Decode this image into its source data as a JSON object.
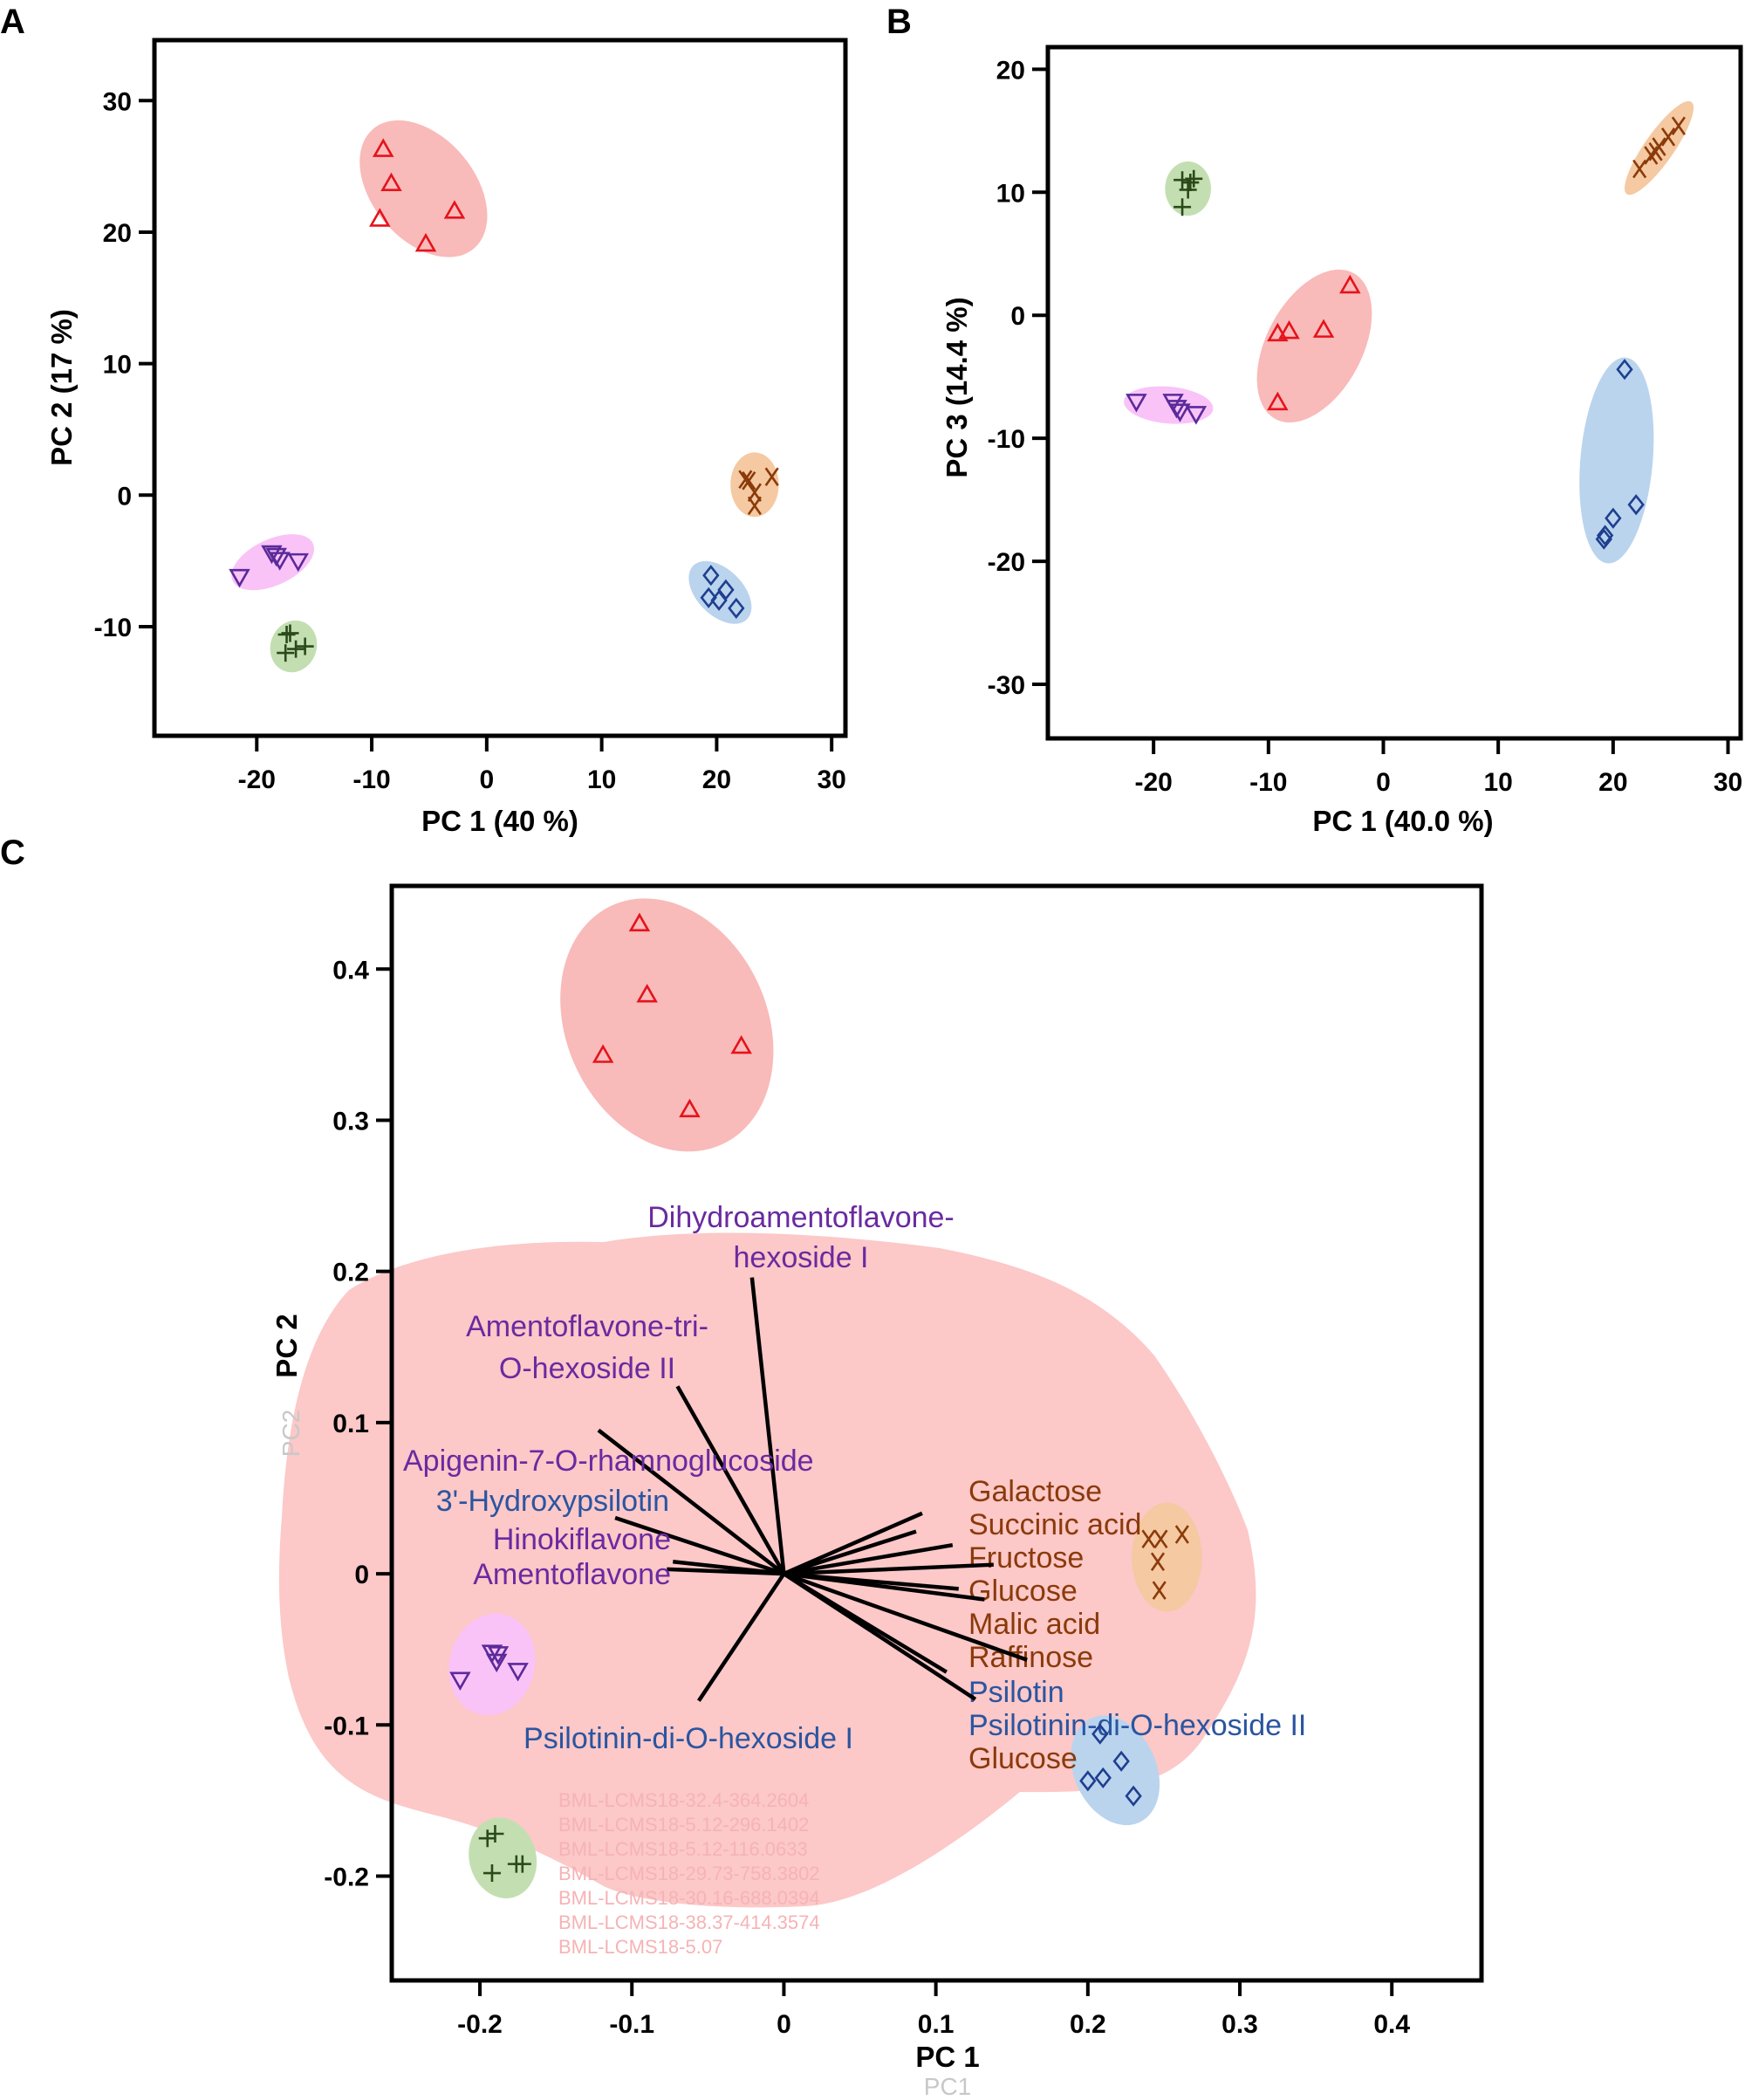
{
  "colors": {
    "red": {
      "fill": "#f9baba",
      "mark": "#e5131b"
    },
    "orange": {
      "fill": "#f5c9a1",
      "mark": "#8b3a0a"
    },
    "blue": {
      "fill": "#bad4ee",
      "mark": "#1f3f8f"
    },
    "magenta": {
      "fill": "#f9c3f8",
      "mark": "#5b2a9a"
    },
    "green": {
      "fill": "#c3dfb1",
      "mark": "#2a4a1a"
    },
    "label_purple": "#6a2aa0",
    "label_blue": "#2a55a0",
    "label_brown": "#8a3a0a",
    "loading_cloud": "#fcc8c8"
  },
  "chart_data": [
    {
      "panel": "A",
      "type": "scatter",
      "xlabel": "PC 1 (40 %)",
      "ylabel": "PC 2 (17 %)",
      "xlim": [
        -28.9,
        31.2
      ],
      "ylim": [
        -18.3,
        34.6
      ],
      "xticks": [
        -20,
        -10,
        0,
        10,
        20,
        30
      ],
      "yticks": [
        -10,
        0,
        10,
        20,
        30
      ],
      "groups": [
        {
          "color": "red",
          "marker": "triangle-up",
          "points": [
            [
              -9,
              26.3
            ],
            [
              -8.3,
              23.7
            ],
            [
              -9.3,
              21
            ],
            [
              -2.8,
              21.6
            ],
            [
              -5.3,
              19.1
            ]
          ],
          "ellipse": {
            "center": [
              -5.5,
              23.3
            ],
            "a": 6.8,
            "b": 3.9,
            "angle": 50
          }
        },
        {
          "color": "orange",
          "marker": "x",
          "points": [
            [
              22.5,
              1.2
            ],
            [
              22.8,
              1.1
            ],
            [
              24.8,
              1.4
            ],
            [
              23.3,
              0.2
            ],
            [
              23.3,
              -0.8
            ]
          ],
          "ellipse": {
            "center": [
              23.3,
              0.8
            ],
            "a": 2.1,
            "b": 2.45,
            "angle": 0
          }
        },
        {
          "color": "blue",
          "marker": "diamond",
          "points": [
            [
              19.5,
              -6.1
            ],
            [
              20.8,
              -7.2
            ],
            [
              19.3,
              -7.8
            ],
            [
              20.2,
              -8
            ],
            [
              21.7,
              -8.6
            ]
          ],
          "ellipse": {
            "center": [
              20.3,
              -7.4
            ],
            "a": 3.3,
            "b": 1.75,
            "angle": 45
          }
        },
        {
          "color": "magenta",
          "marker": "triangle-down",
          "points": [
            [
              -21.5,
              -6.2
            ],
            [
              -18.7,
              -4.4
            ],
            [
              -18.3,
              -4.6
            ],
            [
              -18,
              -4.9
            ],
            [
              -16.4,
              -5
            ]
          ],
          "ellipse": {
            "center": [
              -18.6,
              -5.1
            ],
            "a": 3.85,
            "b": 1.75,
            "angle": -25
          }
        },
        {
          "color": "green",
          "marker": "plus",
          "points": [
            [
              -17.4,
              -10.6
            ],
            [
              -17.1,
              -10.5
            ],
            [
              -17.5,
              -12
            ],
            [
              -16.6,
              -11.7
            ],
            [
              -15.8,
              -11.5
            ]
          ],
          "ellipse": {
            "center": [
              -16.8,
              -11.5
            ],
            "a": 2.0,
            "b": 2.0,
            "angle": 20
          }
        }
      ]
    },
    {
      "panel": "B",
      "type": "scatter",
      "xlabel": "PC 1 (40.0 %)",
      "ylabel": "PC 3 (14.4 %)",
      "xlim": [
        -29.2,
        31.1
      ],
      "ylim": [
        -34.4,
        21.8
      ],
      "xticks": [
        -20,
        -10,
        0,
        10,
        20,
        30
      ],
      "yticks": [
        -30,
        -20,
        -10,
        0,
        10,
        20
      ],
      "groups": [
        {
          "color": "red",
          "marker": "triangle-up",
          "points": [
            [
              -9.2,
              -1.5
            ],
            [
              -8.2,
              -1.3
            ],
            [
              -5.2,
              -1.2
            ],
            [
              -2.9,
              2.4
            ],
            [
              -9.2,
              -7.1
            ]
          ],
          "ellipse": {
            "center": [
              -6,
              -2.5
            ],
            "a": 7.2,
            "b": 3.9,
            "angle": -62
          }
        },
        {
          "color": "orange",
          "marker": "x",
          "points": [
            [
              22.3,
              11.9
            ],
            [
              23.3,
              13
            ],
            [
              24,
              13.7
            ],
            [
              24.8,
              14.5
            ],
            [
              25.7,
              15.4
            ],
            [
              23.7,
              13.3
            ]
          ],
          "ellipse": {
            "center": [
              24,
              13.6
            ],
            "a": 4.9,
            "b": 1.2,
            "angle": -55
          }
        },
        {
          "color": "blue",
          "marker": "diamond",
          "points": [
            [
              21,
              -4.4
            ],
            [
              22,
              -15.4
            ],
            [
              20,
              -16.5
            ],
            [
              19.3,
              -17.9
            ],
            [
              19.2,
              -18.2
            ]
          ],
          "ellipse": {
            "center": [
              20.3,
              -11.8
            ],
            "a": 3.15,
            "b": 8.4,
            "angle": 5
          }
        },
        {
          "color": "magenta",
          "marker": "triangle-down",
          "points": [
            [
              -21.5,
              -7
            ],
            [
              -18.3,
              -7
            ],
            [
              -18,
              -7.5
            ],
            [
              -17.7,
              -7.8
            ],
            [
              -16.3,
              -8
            ]
          ],
          "ellipse": {
            "center": [
              -18.7,
              -7.3
            ],
            "a": 3.9,
            "b": 1.5,
            "angle": 5
          }
        },
        {
          "color": "green",
          "marker": "plus",
          "points": [
            [
              -17.5,
              11
            ],
            [
              -16.5,
              11.1
            ],
            [
              -17,
              10.2
            ],
            [
              -17.5,
              8.8
            ],
            [
              -16.8,
              10.8
            ]
          ],
          "ellipse": {
            "center": [
              -17,
              10.3
            ],
            "a": 2.0,
            "b": 2.2,
            "angle": 0
          }
        }
      ]
    },
    {
      "panel": "C",
      "type": "scatter",
      "xlabel": "PC 1",
      "ylabel": "PC 2",
      "ghost_xlabel": "PC1",
      "ghost_ylabel": "PC2",
      "xlim": [
        -0.258,
        0.459
      ],
      "ylim": [
        -0.269,
        0.455
      ],
      "xticks": [
        -0.2,
        -0.1,
        0,
        0.1,
        0.2,
        0.3,
        0.4
      ],
      "xtick_labels": [
        "-0.2",
        "-0.1",
        "0",
        "0.1",
        "0.2",
        "0.3",
        "0.4"
      ],
      "yticks": [
        -0.2,
        -0.1,
        0,
        0.1,
        0.2,
        0.3,
        0.4
      ],
      "ytick_labels": [
        "-0.2",
        "-0.1",
        "0",
        "0.1",
        "0.2",
        "0.3",
        "0.4"
      ],
      "groups": [
        {
          "color": "red",
          "marker": "triangle-up",
          "points": [
            [
              -0.095,
              0.43
            ],
            [
              -0.09,
              0.383
            ],
            [
              -0.119,
              0.343
            ],
            [
              -0.028,
              0.349
            ],
            [
              -0.062,
              0.307
            ]
          ],
          "ellipse": {
            "center": [
              -0.077,
              0.363
            ],
            "a": 0.066,
            "b": 0.087,
            "angle": -25
          }
        },
        {
          "color": "orange",
          "marker": "x",
          "points": [
            [
              0.24,
              0.023
            ],
            [
              0.248,
              0.023
            ],
            [
              0.262,
              0.026
            ],
            [
              0.246,
              0.008
            ],
            [
              0.247,
              -0.011
            ]
          ],
          "ellipse": {
            "center": [
              0.252,
              0.011
            ],
            "a": 0.023,
            "b": 0.036,
            "angle": 0
          }
        },
        {
          "color": "blue",
          "marker": "diamond",
          "points": [
            [
              0.208,
              -0.106
            ],
            [
              0.222,
              -0.124
            ],
            [
              0.2,
              -0.137
            ],
            [
              0.21,
              -0.135
            ],
            [
              0.23,
              -0.147
            ]
          ],
          "ellipse": {
            "center": [
              0.218,
              -0.13
            ],
            "a": 0.027,
            "b": 0.038,
            "angle": -25
          }
        },
        {
          "color": "magenta",
          "marker": "triangle-down",
          "points": [
            [
              -0.192,
              -0.052
            ],
            [
              -0.188,
              -0.053
            ],
            [
              -0.189,
              -0.058
            ],
            [
              -0.175,
              -0.064
            ],
            [
              -0.213,
              -0.07
            ]
          ],
          "ellipse": {
            "center": [
              -0.192,
              -0.06
            ],
            "a": 0.028,
            "b": 0.034,
            "angle": 15
          }
        },
        {
          "color": "green",
          "marker": "plus",
          "points": [
            [
              -0.19,
              -0.172
            ],
            [
              -0.195,
              -0.175
            ],
            [
              -0.172,
              -0.192
            ],
            [
              -0.176,
              -0.192
            ],
            [
              -0.192,
              -0.198
            ]
          ],
          "ellipse": {
            "center": [
              -0.185,
              -0.188
            ],
            "a": 0.022,
            "b": 0.027,
            "angle": -15
          }
        }
      ],
      "loadings": [
        {
          "label": [
            "Dihydroamentoflavone-",
            "hexoside I"
          ],
          "x": -0.021,
          "y": 0.196,
          "color": "label_purple"
        },
        {
          "label": [
            "Amentoflavone-tri-",
            "O-hexoside II"
          ],
          "x": -0.07,
          "y": 0.124,
          "color": "label_purple"
        },
        {
          "label": [
            "Apigenin-7-O-rhamnoglucoside"
          ],
          "x": -0.122,
          "y": 0.095,
          "color": "label_purple"
        },
        {
          "label": [
            "3'-Hydroxypsilotin"
          ],
          "x": -0.111,
          "y": 0.037,
          "color": "label_blue"
        },
        {
          "label": [
            "Hinokiflavone"
          ],
          "x": -0.073,
          "y": 0.008,
          "color": "label_purple"
        },
        {
          "label": [
            "Amentoflavone"
          ],
          "x": -0.077,
          "y": 0.003,
          "color": "label_purple"
        },
        {
          "label": [
            "Psilotinin-di-O-hexoside I"
          ],
          "x": -0.056,
          "y": -0.084,
          "color": "label_blue"
        },
        {
          "label": [
            "Galactose"
          ],
          "x": 0.091,
          "y": 0.04,
          "color": "label_brown"
        },
        {
          "label": [
            "Succinic acid"
          ],
          "x": 0.087,
          "y": 0.028,
          "color": "label_brown"
        },
        {
          "label": [
            "Fructose"
          ],
          "x": 0.111,
          "y": 0.019,
          "color": "label_brown"
        },
        {
          "label": [
            "Glucose"
          ],
          "x": 0.138,
          "y": 0.006,
          "color": "label_brown"
        },
        {
          "label": [
            "Malic acid"
          ],
          "x": 0.115,
          "y": -0.01,
          "color": "label_brown"
        },
        {
          "label": [
            "Raffinose"
          ],
          "x": 0.132,
          "y": -0.017,
          "color": "label_brown"
        },
        {
          "label": [
            "Psilotin"
          ],
          "x": 0.16,
          "y": -0.057,
          "color": "label_blue"
        },
        {
          "label": [
            "Psilotinin-di-O-hexoside II"
          ],
          "x": 0.107,
          "y": -0.065,
          "color": "label_blue"
        },
        {
          "label": [
            "Glucose"
          ],
          "x": 0.126,
          "y": -0.083,
          "color": "label_brown"
        }
      ],
      "background_feature_labels": [
        "BML-LCMS18-32.4-364.2604",
        "BML-LCMS18-5.12-296.1402",
        "BML-LCMS18-5.12-116.0633",
        "BML-LCMS18-29.73-758.3802",
        "BML-LCMS18-30.16-688.0394",
        "BML-LCMS18-38.37-414.3574",
        "BML-LCMS18-5.07"
      ]
    }
  ]
}
